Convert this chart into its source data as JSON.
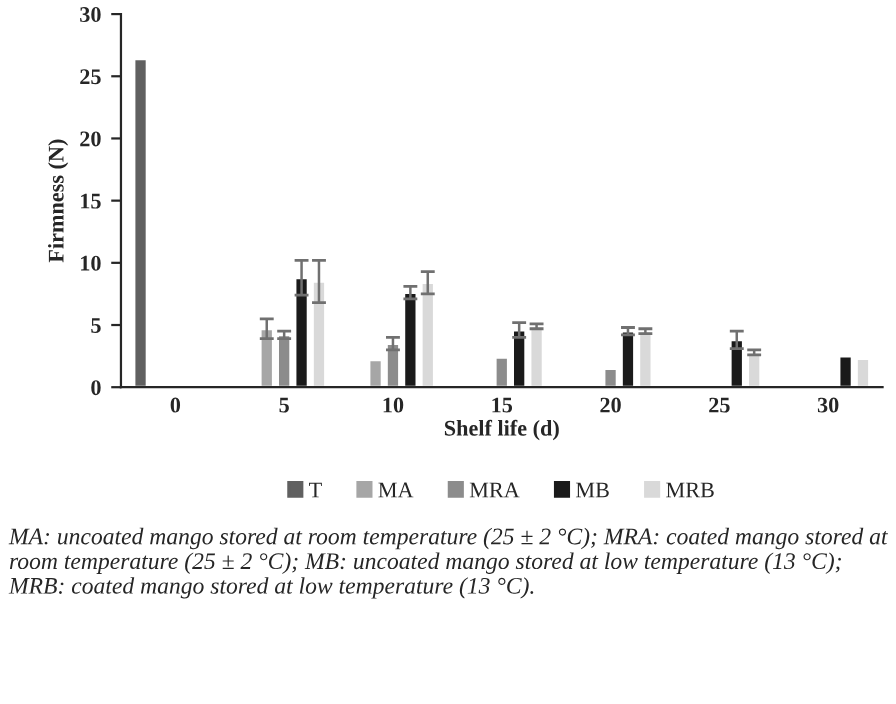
{
  "chart_data": {
    "type": "bar",
    "xlabel": "Shelf life (d)",
    "ylabel": "Firmness (N)",
    "categories": [
      "0",
      "5",
      "10",
      "15",
      "20",
      "25",
      "30"
    ],
    "series": [
      {
        "name": "T",
        "color": "#606060",
        "values": [
          26.4,
          null,
          null,
          null,
          null,
          null,
          null
        ]
      },
      {
        "name": "MA",
        "color": "#a6a6a6",
        "values": [
          null,
          4.7,
          2.2,
          null,
          null,
          null,
          null
        ],
        "errors": [
          null,
          0.8,
          null,
          null,
          null,
          null,
          null
        ]
      },
      {
        "name": "MRA",
        "color": "#8c8c8c",
        "values": [
          null,
          4.2,
          3.5,
          2.4,
          1.5,
          null,
          null
        ],
        "errors": [
          null,
          0.3,
          0.5,
          null,
          null,
          null,
          null
        ]
      },
      {
        "name": "MB",
        "color": "#1a1a1a",
        "values": [
          null,
          8.8,
          7.6,
          4.6,
          4.5,
          3.8,
          2.5
        ],
        "errors": [
          null,
          1.4,
          0.5,
          0.6,
          0.3,
          0.7,
          null
        ]
      },
      {
        "name": "MRB",
        "color": "#d9d9d9",
        "values": [
          null,
          8.5,
          8.4,
          4.9,
          4.5,
          2.8,
          2.3
        ],
        "errors": [
          null,
          1.7,
          0.9,
          0.2,
          0.2,
          0.2,
          null
        ]
      }
    ],
    "ylim": [
      0,
      30
    ],
    "yticks": [
      0,
      5,
      10,
      15,
      20,
      25,
      30
    ],
    "grid": false,
    "legend": "bottom",
    "annotations": [
      "MA: uncoated mango stored at room temperature (25 ± 2 °C); MRA: coated mango stored at room temperature (25 ± 2 °C); MB: uncoated mango stored at low temperature (13 °C); MRB: coated mango stored at low temperature (13 °C)."
    ]
  }
}
